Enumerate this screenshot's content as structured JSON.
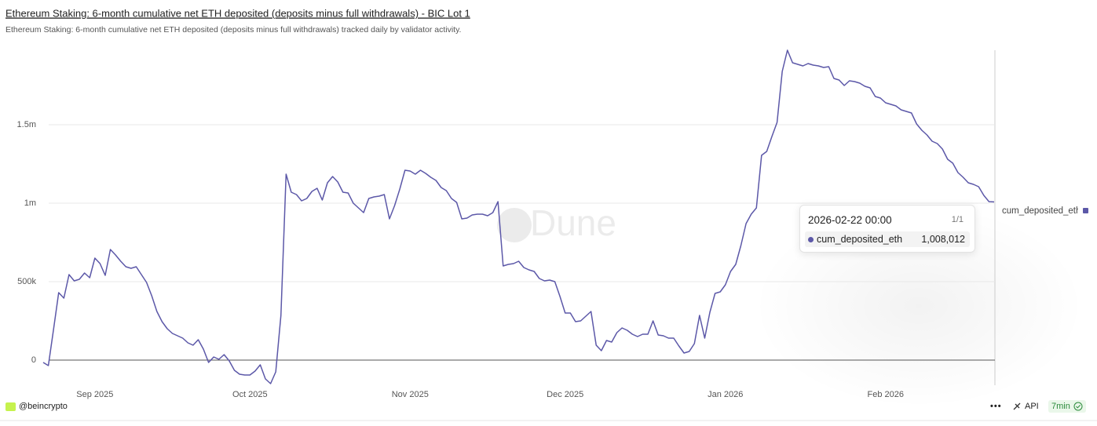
{
  "chart_data": {
    "type": "line",
    "title": "Ethereum Staking: 6-month cumulative net ETH deposited (deposits minus full withdrawals) - BIC Lot 1",
    "subtitle": "Ethereum Staking: 6-month cumulative net ETH deposited (deposits minus full withdrawals) tracked daily by validator activity.",
    "watermark": "Dune",
    "legend": "right",
    "grid": true,
    "x": [
      "2025-08-22",
      "2025-08-23",
      "2025-08-24",
      "2025-08-25",
      "2025-08-26",
      "2025-08-27",
      "2025-08-28",
      "2025-08-29",
      "2025-08-30",
      "2025-08-31",
      "2025-09-01",
      "2025-09-02",
      "2025-09-03",
      "2025-09-04",
      "2025-09-05",
      "2025-09-06",
      "2025-09-07",
      "2025-09-08",
      "2025-09-09",
      "2025-09-10",
      "2025-09-11",
      "2025-09-12",
      "2025-09-13",
      "2025-09-14",
      "2025-09-15",
      "2025-09-16",
      "2025-09-17",
      "2025-09-18",
      "2025-09-19",
      "2025-09-20",
      "2025-09-21",
      "2025-09-22",
      "2025-09-23",
      "2025-09-24",
      "2025-09-25",
      "2025-09-26",
      "2025-09-27",
      "2025-09-28",
      "2025-09-29",
      "2025-09-30",
      "2025-10-01",
      "2025-10-02",
      "2025-10-03",
      "2025-10-04",
      "2025-10-05",
      "2025-10-06",
      "2025-10-07",
      "2025-10-08",
      "2025-10-09",
      "2025-10-10",
      "2025-10-11",
      "2025-10-12",
      "2025-10-13",
      "2025-10-14",
      "2025-10-15",
      "2025-10-16",
      "2025-10-17",
      "2025-10-18",
      "2025-10-19",
      "2025-10-20",
      "2025-10-21",
      "2025-10-22",
      "2025-10-23",
      "2025-10-24",
      "2025-10-25",
      "2025-10-26",
      "2025-10-27",
      "2025-10-28",
      "2025-10-29",
      "2025-10-30",
      "2025-10-31",
      "2025-11-01",
      "2025-11-02",
      "2025-11-03",
      "2025-11-04",
      "2025-11-05",
      "2025-11-06",
      "2025-11-07",
      "2025-11-08",
      "2025-11-09",
      "2025-11-10",
      "2025-11-11",
      "2025-11-12",
      "2025-11-13",
      "2025-11-14",
      "2025-11-15",
      "2025-11-16",
      "2025-11-17",
      "2025-11-18",
      "2025-11-19",
      "2025-11-20",
      "2025-11-21",
      "2025-11-22",
      "2025-11-23",
      "2025-11-24",
      "2025-11-25",
      "2025-11-26",
      "2025-11-27",
      "2025-11-28",
      "2025-11-29",
      "2025-11-30",
      "2025-12-01",
      "2025-12-02",
      "2025-12-03",
      "2025-12-04",
      "2025-12-05",
      "2025-12-06",
      "2025-12-07",
      "2025-12-08",
      "2025-12-09",
      "2025-12-10",
      "2025-12-11",
      "2025-12-12",
      "2025-12-13",
      "2025-12-14",
      "2025-12-15",
      "2025-12-16",
      "2025-12-17",
      "2025-12-18",
      "2025-12-19",
      "2025-12-20",
      "2025-12-21",
      "2025-12-22",
      "2025-12-23",
      "2025-12-24",
      "2025-12-25",
      "2025-12-26",
      "2025-12-27",
      "2025-12-28",
      "2025-12-29",
      "2025-12-30",
      "2025-12-31",
      "2026-01-01",
      "2026-01-02",
      "2026-01-03",
      "2026-01-04",
      "2026-01-05",
      "2026-01-06",
      "2026-01-07",
      "2026-01-08",
      "2026-01-09",
      "2026-01-10",
      "2026-01-11",
      "2026-01-12",
      "2026-01-13",
      "2026-01-14",
      "2026-01-15",
      "2026-01-16",
      "2026-01-17",
      "2026-01-18",
      "2026-01-19",
      "2026-01-20",
      "2026-01-21",
      "2026-01-22",
      "2026-01-23",
      "2026-01-24",
      "2026-01-25",
      "2026-01-26",
      "2026-01-27",
      "2026-01-28",
      "2026-01-29",
      "2026-01-30",
      "2026-01-31",
      "2026-02-01",
      "2026-02-02",
      "2026-02-03",
      "2026-02-04",
      "2026-02-05",
      "2026-02-06",
      "2026-02-07",
      "2026-02-08",
      "2026-02-09",
      "2026-02-10",
      "2026-02-11",
      "2026-02-12",
      "2026-02-13",
      "2026-02-14",
      "2026-02-15",
      "2026-02-16",
      "2026-02-17",
      "2026-02-18",
      "2026-02-19",
      "2026-02-20",
      "2026-02-21",
      "2026-02-22"
    ],
    "series": [
      {
        "name": "cum_deposited_eth",
        "color": "#5c58a8",
        "values": [
          -15000,
          -35000,
          195000,
          430000,
          395000,
          545000,
          505000,
          515000,
          555000,
          525000,
          650000,
          615000,
          540000,
          705000,
          670000,
          630000,
          595000,
          585000,
          595000,
          545000,
          495000,
          410000,
          310000,
          245000,
          200000,
          170000,
          155000,
          140000,
          110000,
          95000,
          130000,
          70000,
          -15000,
          20000,
          5000,
          35000,
          -5000,
          -65000,
          -90000,
          -95000,
          -95000,
          -70000,
          -30000,
          -120000,
          -150000,
          -75000,
          285000,
          1185000,
          1070000,
          1055000,
          1015000,
          1030000,
          1075000,
          1095000,
          1020000,
          1130000,
          1170000,
          1135000,
          1070000,
          1065000,
          1000000,
          970000,
          940000,
          1030000,
          1040000,
          1045000,
          1055000,
          900000,
          985000,
          1090000,
          1210000,
          1205000,
          1185000,
          1210000,
          1190000,
          1165000,
          1145000,
          1100000,
          1080000,
          1030000,
          1005000,
          900000,
          905000,
          925000,
          930000,
          930000,
          920000,
          940000,
          1010000,
          600000,
          610000,
          615000,
          630000,
          590000,
          575000,
          565000,
          520000,
          505000,
          510000,
          500000,
          405000,
          300000,
          300000,
          245000,
          250000,
          280000,
          310000,
          95000,
          60000,
          125000,
          115000,
          175000,
          205000,
          190000,
          165000,
          150000,
          165000,
          165000,
          250000,
          160000,
          155000,
          140000,
          140000,
          90000,
          45000,
          55000,
          105000,
          285000,
          140000,
          305000,
          425000,
          435000,
          480000,
          565000,
          610000,
          730000,
          870000,
          930000,
          970000,
          1305000,
          1330000,
          1425000,
          1515000,
          1840000,
          1975000,
          1895000,
          1885000,
          1875000,
          1890000,
          1880000,
          1875000,
          1865000,
          1870000,
          1795000,
          1785000,
          1750000,
          1780000,
          1775000,
          1765000,
          1745000,
          1735000,
          1680000,
          1670000,
          1640000,
          1630000,
          1620000,
          1595000,
          1585000,
          1575000,
          1505000,
          1465000,
          1435000,
          1395000,
          1380000,
          1345000,
          1280000,
          1255000,
          1195000,
          1165000,
          1130000,
          1120000,
          1105000,
          1050000,
          1010000,
          1008012
        ]
      }
    ],
    "xlim": [
      "2025-08-22",
      "2026-02-22"
    ],
    "xticks": [
      {
        "value": "2025-09-01",
        "label": "Sep 2025"
      },
      {
        "value": "2025-10-01",
        "label": "Oct 2025"
      },
      {
        "value": "2025-11-01",
        "label": "Nov 2025"
      },
      {
        "value": "2025-12-01",
        "label": "Dec 2025"
      },
      {
        "value": "2026-01-01",
        "label": "Jan 2026"
      },
      {
        "value": "2026-02-01",
        "label": "Feb 2026"
      }
    ],
    "ylim": [
      -160000,
      2020000
    ],
    "yticks": [
      0,
      {
        "value": 500000,
        "label": "500k"
      },
      {
        "value": 1000000,
        "label": "1m"
      },
      {
        "value": 1500000,
        "label": "1.5m"
      }
    ],
    "tooltip": {
      "x": "2026-02-22 00:00",
      "counter": "1/1",
      "value_label": "1,008,012"
    }
  },
  "footer": {
    "author": "@beincrypto",
    "api": "API",
    "refresh": "7min"
  }
}
